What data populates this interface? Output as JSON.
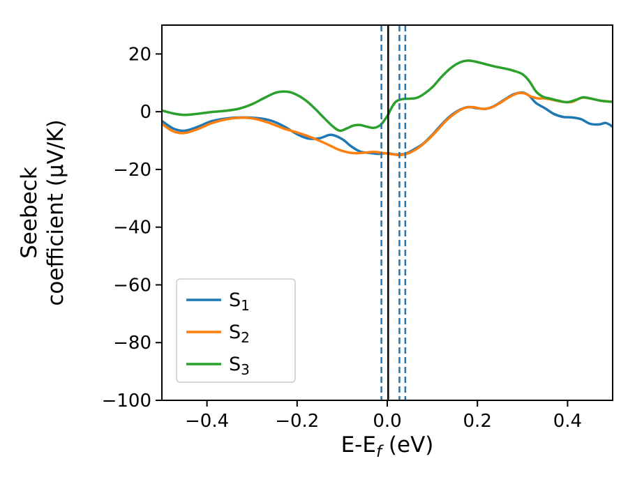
{
  "figure": {
    "background": "#ffffff"
  },
  "chart_data": {
    "type": "line",
    "title": "",
    "xlabel_parts": [
      {
        "text": "E-E"
      },
      {
        "text": "f",
        "sub": true,
        "italic": true
      },
      {
        "text": " (eV)"
      }
    ],
    "ylabel_lines": [
      "Seebeck",
      "coefficient  (μV/K)"
    ],
    "xlim": [
      -0.5,
      0.5
    ],
    "ylim": [
      -100,
      30
    ],
    "xticks": [
      {
        "v": -0.4,
        "label": "−0.4"
      },
      {
        "v": -0.2,
        "label": "−0.2"
      },
      {
        "v": 0.0,
        "label": "0.0"
      },
      {
        "v": 0.2,
        "label": "0.2"
      },
      {
        "v": 0.4,
        "label": "0.4"
      }
    ],
    "yticks": [
      {
        "v": 20,
        "label": "20"
      },
      {
        "v": 0,
        "label": "0"
      },
      {
        "v": -20,
        "label": "−20"
      },
      {
        "v": -40,
        "label": "−40"
      },
      {
        "v": -60,
        "label": "−60"
      },
      {
        "v": -80,
        "label": "−80"
      },
      {
        "v": -100,
        "label": "−100"
      }
    ],
    "grid": false,
    "legend_position": "lower left",
    "legend": [
      {
        "base": "S",
        "sub": "1",
        "color": "#1f77b4"
      },
      {
        "base": "S",
        "sub": "2",
        "color": "#ff7f0e"
      },
      {
        "base": "S",
        "sub": "3",
        "color": "#2ca02c"
      }
    ],
    "vlines": [
      {
        "x": -0.013,
        "style": "dashed",
        "color": "#1f77b4",
        "width": 2.5
      },
      {
        "x": 0.002,
        "style": "solid",
        "color": "#000000",
        "width": 2.5
      },
      {
        "x": 0.027,
        "style": "dashed",
        "color": "#1f77b4",
        "width": 2.5
      },
      {
        "x": 0.04,
        "style": "dashed",
        "color": "#1f77b4",
        "width": 2.5
      }
    ],
    "series": [
      {
        "name": "S1",
        "color": "#1f77b4",
        "points": [
          [
            -0.5,
            -3.2
          ],
          [
            -0.475,
            -5.8
          ],
          [
            -0.45,
            -6.6
          ],
          [
            -0.42,
            -5.2
          ],
          [
            -0.39,
            -3.3
          ],
          [
            -0.355,
            -2.3
          ],
          [
            -0.32,
            -2.0
          ],
          [
            -0.29,
            -2.2
          ],
          [
            -0.26,
            -3.0
          ],
          [
            -0.23,
            -5.0
          ],
          [
            -0.2,
            -7.8
          ],
          [
            -0.175,
            -9.3
          ],
          [
            -0.15,
            -9.2
          ],
          [
            -0.125,
            -8.0
          ],
          [
            -0.1,
            -9.5
          ],
          [
            -0.08,
            -12.0
          ],
          [
            -0.06,
            -13.8
          ],
          [
            -0.04,
            -14.3
          ],
          [
            -0.02,
            -14.6
          ],
          [
            0.0,
            -14.4
          ],
          [
            0.02,
            -14.8
          ],
          [
            0.04,
            -14.6
          ],
          [
            0.06,
            -13.0
          ],
          [
            0.08,
            -11.0
          ],
          [
            0.1,
            -8.0
          ],
          [
            0.12,
            -4.5
          ],
          [
            0.14,
            -1.5
          ],
          [
            0.16,
            0.6
          ],
          [
            0.18,
            1.6
          ],
          [
            0.2,
            1.2
          ],
          [
            0.22,
            1.0
          ],
          [
            0.24,
            2.2
          ],
          [
            0.26,
            4.2
          ],
          [
            0.28,
            6.0
          ],
          [
            0.3,
            6.6
          ],
          [
            0.315,
            5.5
          ],
          [
            0.33,
            3.0
          ],
          [
            0.35,
            1.2
          ],
          [
            0.37,
            -0.8
          ],
          [
            0.39,
            -1.8
          ],
          [
            0.41,
            -2.0
          ],
          [
            0.43,
            -2.6
          ],
          [
            0.45,
            -4.2
          ],
          [
            0.47,
            -4.4
          ],
          [
            0.485,
            -3.9
          ],
          [
            0.5,
            -5.2
          ]
        ]
      },
      {
        "name": "S2",
        "color": "#ff7f0e",
        "points": [
          [
            -0.5,
            -4.2
          ],
          [
            -0.475,
            -6.8
          ],
          [
            -0.45,
            -7.4
          ],
          [
            -0.42,
            -6.0
          ],
          [
            -0.39,
            -4.0
          ],
          [
            -0.355,
            -2.6
          ],
          [
            -0.32,
            -2.1
          ],
          [
            -0.29,
            -2.6
          ],
          [
            -0.26,
            -4.0
          ],
          [
            -0.23,
            -5.8
          ],
          [
            -0.2,
            -7.2
          ],
          [
            -0.17,
            -8.8
          ],
          [
            -0.14,
            -10.8
          ],
          [
            -0.11,
            -13.0
          ],
          [
            -0.09,
            -14.0
          ],
          [
            -0.07,
            -14.4
          ],
          [
            -0.05,
            -14.2
          ],
          [
            -0.03,
            -13.9
          ],
          [
            -0.01,
            -14.3
          ],
          [
            0.01,
            -14.7
          ],
          [
            0.03,
            -15.0
          ],
          [
            0.05,
            -14.2
          ],
          [
            0.07,
            -12.4
          ],
          [
            0.09,
            -9.8
          ],
          [
            0.11,
            -6.6
          ],
          [
            0.13,
            -3.2
          ],
          [
            0.15,
            -0.6
          ],
          [
            0.17,
            1.2
          ],
          [
            0.19,
            1.6
          ],
          [
            0.21,
            1.0
          ],
          [
            0.23,
            1.4
          ],
          [
            0.25,
            3.0
          ],
          [
            0.27,
            5.0
          ],
          [
            0.29,
            6.4
          ],
          [
            0.305,
            6.3
          ],
          [
            0.32,
            5.2
          ],
          [
            0.335,
            4.6
          ],
          [
            0.35,
            4.6
          ],
          [
            0.37,
            4.0
          ],
          [
            0.39,
            3.4
          ],
          [
            0.41,
            3.4
          ],
          [
            0.43,
            4.8
          ],
          [
            0.45,
            4.6
          ],
          [
            0.47,
            3.9
          ],
          [
            0.485,
            3.6
          ],
          [
            0.5,
            3.5
          ]
        ]
      },
      {
        "name": "S3",
        "color": "#2ca02c",
        "points": [
          [
            -0.5,
            0.4
          ],
          [
            -0.475,
            -0.6
          ],
          [
            -0.45,
            -1.1
          ],
          [
            -0.42,
            -0.7
          ],
          [
            -0.39,
            -0.1
          ],
          [
            -0.36,
            0.3
          ],
          [
            -0.33,
            1.0
          ],
          [
            -0.3,
            2.6
          ],
          [
            -0.27,
            5.0
          ],
          [
            -0.245,
            6.7
          ],
          [
            -0.22,
            6.9
          ],
          [
            -0.2,
            5.8
          ],
          [
            -0.18,
            3.8
          ],
          [
            -0.16,
            1.0
          ],
          [
            -0.14,
            -2.2
          ],
          [
            -0.12,
            -5.2
          ],
          [
            -0.105,
            -6.6
          ],
          [
            -0.09,
            -5.8
          ],
          [
            -0.075,
            -4.8
          ],
          [
            -0.06,
            -4.6
          ],
          [
            -0.045,
            -5.2
          ],
          [
            -0.03,
            -5.6
          ],
          [
            -0.015,
            -4.6
          ],
          [
            0.0,
            -1.5
          ],
          [
            0.01,
            1.5
          ],
          [
            0.02,
            3.6
          ],
          [
            0.035,
            4.4
          ],
          [
            0.05,
            4.5
          ],
          [
            0.065,
            4.8
          ],
          [
            0.08,
            6.0
          ],
          [
            0.1,
            8.5
          ],
          [
            0.12,
            12.0
          ],
          [
            0.14,
            15.0
          ],
          [
            0.16,
            17.0
          ],
          [
            0.18,
            17.7
          ],
          [
            0.2,
            17.2
          ],
          [
            0.22,
            16.4
          ],
          [
            0.24,
            15.6
          ],
          [
            0.26,
            15.0
          ],
          [
            0.28,
            14.2
          ],
          [
            0.3,
            13.0
          ],
          [
            0.315,
            10.6
          ],
          [
            0.33,
            7.0
          ],
          [
            0.345,
            5.2
          ],
          [
            0.36,
            4.6
          ],
          [
            0.38,
            3.8
          ],
          [
            0.4,
            3.3
          ],
          [
            0.42,
            4.2
          ],
          [
            0.435,
            5.0
          ],
          [
            0.45,
            4.6
          ],
          [
            0.47,
            3.9
          ],
          [
            0.485,
            3.6
          ],
          [
            0.5,
            3.4
          ]
        ]
      }
    ]
  }
}
